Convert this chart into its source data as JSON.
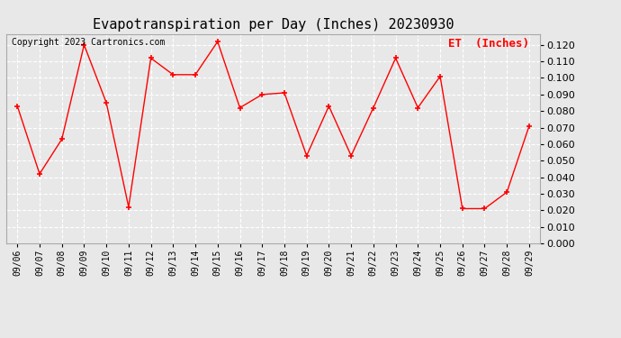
{
  "title": "Evapotranspiration per Day (Inches) 20230930",
  "copyright_text": "Copyright 2023 Cartronics.com",
  "legend_label": "ET  (Inches)",
  "dates": [
    "09/06",
    "09/07",
    "09/08",
    "09/09",
    "09/10",
    "09/11",
    "09/12",
    "09/13",
    "09/14",
    "09/15",
    "09/16",
    "09/17",
    "09/18",
    "09/19",
    "09/20",
    "09/21",
    "09/22",
    "09/23",
    "09/24",
    "09/25",
    "09/26",
    "09/27",
    "09/28",
    "09/29"
  ],
  "values": [
    0.083,
    0.042,
    0.063,
    0.12,
    0.085,
    0.022,
    0.112,
    0.102,
    0.102,
    0.122,
    0.082,
    0.09,
    0.091,
    0.053,
    0.083,
    0.053,
    0.082,
    0.112,
    0.082,
    0.101,
    0.021,
    0.021,
    0.031,
    0.071
  ],
  "line_color": "#ff0000",
  "marker": "+",
  "ylim": [
    0.0,
    0.1267
  ],
  "yticks": [
    0.0,
    0.01,
    0.02,
    0.03,
    0.04,
    0.05,
    0.06,
    0.07,
    0.08,
    0.09,
    0.1,
    0.11,
    0.12
  ],
  "background_color": "#e8e8e8",
  "plot_bg_color": "#e8e8e8",
  "grid_color": "#ffffff",
  "title_fontsize": 11,
  "legend_color": "#ff0000",
  "legend_fontsize": 9,
  "copyright_fontsize": 7,
  "tick_fontsize": 7,
  "ytick_fontsize": 8
}
